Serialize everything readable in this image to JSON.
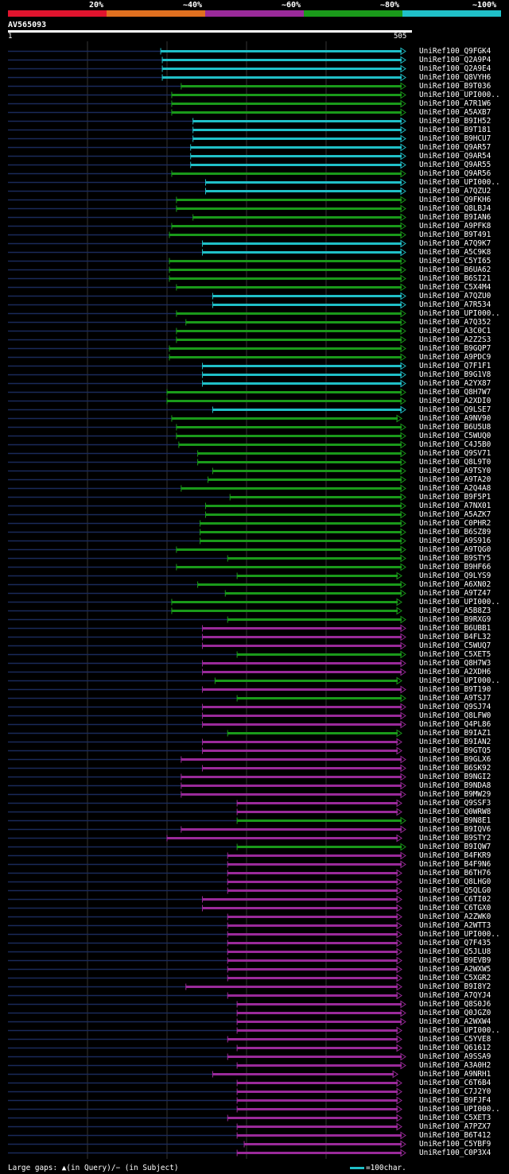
{
  "legend": {
    "labels": [
      "20%",
      "~40%",
      "~60%",
      "~80%",
      "~100%"
    ],
    "colors": [
      "#e0142e",
      "#e07020",
      "#9a2a9a",
      "#1a9a1a",
      "#20c0c8"
    ]
  },
  "query": {
    "name": "AV565093",
    "start_label": "1",
    "end_label": "505",
    "length": 505
  },
  "hits": [
    {
      "name": "UniRef100_Q9FGK4",
      "start": 194,
      "end": 505,
      "color": "cyan"
    },
    {
      "name": "UniRef100_Q2A9P4",
      "start": 196,
      "end": 505,
      "color": "cyan"
    },
    {
      "name": "UniRef100_Q2A9E4",
      "start": 196,
      "end": 505,
      "color": "cyan"
    },
    {
      "name": "UniRef100_Q8VYH6",
      "start": 196,
      "end": 505,
      "color": "cyan"
    },
    {
      "name": "UniRef100_B9T036",
      "start": 220,
      "end": 505,
      "color": "green"
    },
    {
      "name": "UniRef100_UPI000..",
      "start": 208,
      "end": 505,
      "color": "green"
    },
    {
      "name": "UniRef100_A7R1W6",
      "start": 208,
      "end": 505,
      "color": "green"
    },
    {
      "name": "UniRef100_A5AXB7",
      "start": 208,
      "end": 505,
      "color": "green"
    },
    {
      "name": "UniRef100_B9IH52",
      "start": 235,
      "end": 505,
      "color": "cyan"
    },
    {
      "name": "UniRef100_B9T181",
      "start": 235,
      "end": 505,
      "color": "cyan"
    },
    {
      "name": "UniRef100_B9HCU7",
      "start": 235,
      "end": 505,
      "color": "cyan"
    },
    {
      "name": "UniRef100_Q9AR57",
      "start": 232,
      "end": 505,
      "color": "cyan"
    },
    {
      "name": "UniRef100_Q9AR54",
      "start": 232,
      "end": 505,
      "color": "cyan"
    },
    {
      "name": "UniRef100_Q9AR55",
      "start": 232,
      "end": 505,
      "color": "cyan"
    },
    {
      "name": "UniRef100_Q9AR56",
      "start": 208,
      "end": 505,
      "color": "green"
    },
    {
      "name": "UniRef100_UPI000..",
      "start": 251,
      "end": 505,
      "color": "cyan"
    },
    {
      "name": "UniRef100_A7QZU2",
      "start": 251,
      "end": 505,
      "color": "cyan"
    },
    {
      "name": "UniRef100_Q9FKH6",
      "start": 214,
      "end": 505,
      "color": "green"
    },
    {
      "name": "UniRef100_Q8LBJ4",
      "start": 214,
      "end": 505,
      "color": "green"
    },
    {
      "name": "UniRef100_B9IAN6",
      "start": 235,
      "end": 505,
      "color": "green"
    },
    {
      "name": "UniRef100_A9PFK8",
      "start": 208,
      "end": 505,
      "color": "green"
    },
    {
      "name": "UniRef100_B9T491",
      "start": 205,
      "end": 505,
      "color": "green"
    },
    {
      "name": "UniRef100_A7Q9K7",
      "start": 247,
      "end": 505,
      "color": "cyan"
    },
    {
      "name": "UniRef100_A5C9K8",
      "start": 247,
      "end": 505,
      "color": "cyan"
    },
    {
      "name": "UniRef100_C5YI65",
      "start": 205,
      "end": 505,
      "color": "green"
    },
    {
      "name": "UniRef100_B6UA62",
      "start": 205,
      "end": 505,
      "color": "green"
    },
    {
      "name": "UniRef100_B6SI21",
      "start": 205,
      "end": 505,
      "color": "green"
    },
    {
      "name": "UniRef100_C5X4M4",
      "start": 214,
      "end": 505,
      "color": "green"
    },
    {
      "name": "UniRef100_A7QZU0",
      "start": 260,
      "end": 505,
      "color": "cyan"
    },
    {
      "name": "UniRef100_A7R534",
      "start": 260,
      "end": 505,
      "color": "cyan"
    },
    {
      "name": "UniRef100_UPI000..",
      "start": 214,
      "end": 505,
      "color": "green"
    },
    {
      "name": "UniRef100_A7Q352",
      "start": 226,
      "end": 505,
      "color": "green"
    },
    {
      "name": "UniRef100_A3C0C1",
      "start": 214,
      "end": 505,
      "color": "green"
    },
    {
      "name": "UniRef100_A2Z2S3",
      "start": 214,
      "end": 505,
      "color": "green"
    },
    {
      "name": "UniRef100_B9GQP7",
      "start": 205,
      "end": 505,
      "color": "green"
    },
    {
      "name": "UniRef100_A9PDC9",
      "start": 205,
      "end": 505,
      "color": "green"
    },
    {
      "name": "UniRef100_Q7F1F1",
      "start": 247,
      "end": 505,
      "color": "cyan"
    },
    {
      "name": "UniRef100_B9G1V8",
      "start": 247,
      "end": 505,
      "color": "cyan"
    },
    {
      "name": "UniRef100_A2YX87",
      "start": 247,
      "end": 505,
      "color": "cyan"
    },
    {
      "name": "UniRef100_Q8H7W7",
      "start": 202,
      "end": 505,
      "color": "green"
    },
    {
      "name": "UniRef100_A2XDI0",
      "start": 202,
      "end": 505,
      "color": "green"
    },
    {
      "name": "UniRef100_Q9LSE7",
      "start": 260,
      "end": 505,
      "color": "cyan"
    },
    {
      "name": "UniRef100_A9NV90",
      "start": 208,
      "end": 500,
      "color": "green"
    },
    {
      "name": "UniRef100_B6U5U8",
      "start": 214,
      "end": 505,
      "color": "green"
    },
    {
      "name": "UniRef100_C5WUQ0",
      "start": 214,
      "end": 505,
      "color": "green"
    },
    {
      "name": "UniRef100_C4J5B0",
      "start": 217,
      "end": 505,
      "color": "green"
    },
    {
      "name": "UniRef100_Q9SV71",
      "start": 241,
      "end": 505,
      "color": "green"
    },
    {
      "name": "UniRef100_Q8L9T0",
      "start": 241,
      "end": 505,
      "color": "green"
    },
    {
      "name": "UniRef100_A9TSY0",
      "start": 260,
      "end": 505,
      "color": "green"
    },
    {
      "name": "UniRef100_A9TA20",
      "start": 254,
      "end": 505,
      "color": "green"
    },
    {
      "name": "UniRef100_A2Q4A8",
      "start": 220,
      "end": 505,
      "color": "green"
    },
    {
      "name": "UniRef100_B9F5P1",
      "start": 282,
      "end": 505,
      "color": "green"
    },
    {
      "name": "UniRef100_A7NX01",
      "start": 251,
      "end": 505,
      "color": "green"
    },
    {
      "name": "UniRef100_A5AZK7",
      "start": 251,
      "end": 505,
      "color": "green"
    },
    {
      "name": "UniRef100_C0PHR2",
      "start": 244,
      "end": 505,
      "color": "green"
    },
    {
      "name": "UniRef100_B6SZ89",
      "start": 244,
      "end": 505,
      "color": "green"
    },
    {
      "name": "UniRef100_A9S916",
      "start": 244,
      "end": 505,
      "color": "green"
    },
    {
      "name": "UniRef100_A9TQG0",
      "start": 214,
      "end": 505,
      "color": "green"
    },
    {
      "name": "UniRef100_B9STY5",
      "start": 279,
      "end": 505,
      "color": "green"
    },
    {
      "name": "UniRef100_B9HF66",
      "start": 214,
      "end": 505,
      "color": "green"
    },
    {
      "name": "UniRef100_Q9LYS9",
      "start": 291,
      "end": 500,
      "color": "green"
    },
    {
      "name": "UniRef100_A6XN02",
      "start": 241,
      "end": 505,
      "color": "green"
    },
    {
      "name": "UniRef100_A9TZ47",
      "start": 276,
      "end": 505,
      "color": "green"
    },
    {
      "name": "UniRef100_UPI000..",
      "start": 208,
      "end": 500,
      "color": "green"
    },
    {
      "name": "UniRef100_A5B8Z3",
      "start": 208,
      "end": 500,
      "color": "green"
    },
    {
      "name": "UniRef100_B9RXG9",
      "start": 279,
      "end": 505,
      "color": "green"
    },
    {
      "name": "UniRef100_B6UBB1",
      "start": 247,
      "end": 505,
      "color": "purple"
    },
    {
      "name": "UniRef100_B4FL32",
      "start": 247,
      "end": 505,
      "color": "purple"
    },
    {
      "name": "UniRef100_C5WUQ7",
      "start": 247,
      "end": 505,
      "color": "purple"
    },
    {
      "name": "UniRef100_C5XET5",
      "start": 291,
      "end": 505,
      "color": "green"
    },
    {
      "name": "UniRef100_Q8H7W3",
      "start": 247,
      "end": 505,
      "color": "purple"
    },
    {
      "name": "UniRef100_A2XDH6",
      "start": 247,
      "end": 505,
      "color": "purple"
    },
    {
      "name": "UniRef100_UPI000..",
      "start": 263,
      "end": 500,
      "color": "green"
    },
    {
      "name": "UniRef100_B9T190",
      "start": 247,
      "end": 505,
      "color": "purple"
    },
    {
      "name": "UniRef100_A9TSJ7",
      "start": 291,
      "end": 505,
      "color": "green"
    },
    {
      "name": "UniRef100_Q9SJ74",
      "start": 247,
      "end": 505,
      "color": "purple"
    },
    {
      "name": "UniRef100_Q8LFW0",
      "start": 247,
      "end": 505,
      "color": "purple"
    },
    {
      "name": "UniRef100_Q4PL86",
      "start": 247,
      "end": 505,
      "color": "purple"
    },
    {
      "name": "UniRef100_B9IAZ1",
      "start": 279,
      "end": 500,
      "color": "green"
    },
    {
      "name": "UniRef100_B9IAN2",
      "start": 247,
      "end": 500,
      "color": "purple"
    },
    {
      "name": "UniRef100_B9GTQ5",
      "start": 247,
      "end": 500,
      "color": "purple"
    },
    {
      "name": "UniRef100_B9GLX6",
      "start": 220,
      "end": 505,
      "color": "purple"
    },
    {
      "name": "UniRef100_B6SK92",
      "start": 247,
      "end": 505,
      "color": "purple"
    },
    {
      "name": "UniRef100_B9NGI2",
      "start": 220,
      "end": 505,
      "color": "purple"
    },
    {
      "name": "UniRef100_B9NDA8",
      "start": 220,
      "end": 505,
      "color": "purple"
    },
    {
      "name": "UniRef100_B9MW29",
      "start": 220,
      "end": 505,
      "color": "purple"
    },
    {
      "name": "UniRef100_Q9SSF3",
      "start": 291,
      "end": 500,
      "color": "purple"
    },
    {
      "name": "UniRef100_Q0WRW8",
      "start": 291,
      "end": 500,
      "color": "purple"
    },
    {
      "name": "UniRef100_B9N8E1",
      "start": 291,
      "end": 505,
      "color": "green"
    },
    {
      "name": "UniRef100_B9IQV6",
      "start": 220,
      "end": 505,
      "color": "purple"
    },
    {
      "name": "UniRef100_B9STY2",
      "start": 202,
      "end": 500,
      "color": "purple"
    },
    {
      "name": "UniRef100_B9IQW7",
      "start": 291,
      "end": 505,
      "color": "green"
    },
    {
      "name": "UniRef100_B4FKR9",
      "start": 279,
      "end": 505,
      "color": "purple"
    },
    {
      "name": "UniRef100_B4F9N6",
      "start": 279,
      "end": 505,
      "color": "purple"
    },
    {
      "name": "UniRef100_B6TH76",
      "start": 279,
      "end": 500,
      "color": "purple"
    },
    {
      "name": "UniRef100_Q8LHG0",
      "start": 279,
      "end": 500,
      "color": "purple"
    },
    {
      "name": "UniRef100_Q5QLG0",
      "start": 279,
      "end": 500,
      "color": "purple"
    },
    {
      "name": "UniRef100_C6TI02",
      "start": 247,
      "end": 500,
      "color": "purple"
    },
    {
      "name": "UniRef100_C6TGX0",
      "start": 247,
      "end": 500,
      "color": "purple"
    },
    {
      "name": "UniRef100_A2ZWK0",
      "start": 279,
      "end": 500,
      "color": "purple"
    },
    {
      "name": "UniRef100_A2WTT3",
      "start": 279,
      "end": 500,
      "color": "purple"
    },
    {
      "name": "UniRef100_UPI000..",
      "start": 279,
      "end": 500,
      "color": "purple"
    },
    {
      "name": "UniRef100_Q7F435",
      "start": 279,
      "end": 500,
      "color": "purple"
    },
    {
      "name": "UniRef100_Q5JLU8",
      "start": 279,
      "end": 500,
      "color": "purple"
    },
    {
      "name": "UniRef100_B9EVB9",
      "start": 279,
      "end": 500,
      "color": "purple"
    },
    {
      "name": "UniRef100_A2WXW5",
      "start": 279,
      "end": 500,
      "color": "purple"
    },
    {
      "name": "UniRef100_C5XGR2",
      "start": 279,
      "end": 500,
      "color": "purple"
    },
    {
      "name": "UniRef100_B9I8Y2",
      "start": 226,
      "end": 500,
      "color": "purple"
    },
    {
      "name": "UniRef100_A7QYJ4",
      "start": 279,
      "end": 500,
      "color": "purple"
    },
    {
      "name": "UniRef100_Q8S0J6",
      "start": 291,
      "end": 505,
      "color": "purple"
    },
    {
      "name": "UniRef100_Q0JGZ0",
      "start": 291,
      "end": 505,
      "color": "purple"
    },
    {
      "name": "UniRef100_A2WXW4",
      "start": 291,
      "end": 505,
      "color": "purple"
    },
    {
      "name": "UniRef100_UPI000..",
      "start": 291,
      "end": 500,
      "color": "purple"
    },
    {
      "name": "UniRef100_C5YVE8",
      "start": 279,
      "end": 500,
      "color": "purple"
    },
    {
      "name": "UniRef100_Q61612",
      "start": 291,
      "end": 500,
      "color": "purple"
    },
    {
      "name": "UniRef100_A9SSA9",
      "start": 279,
      "end": 505,
      "color": "purple"
    },
    {
      "name": "UniRef100_A3A0H2",
      "start": 291,
      "end": 505,
      "color": "purple"
    },
    {
      "name": "UniRef100_A9NRH1",
      "start": 260,
      "end": 495,
      "color": "purple"
    },
    {
      "name": "UniRef100_C6T6B4",
      "start": 291,
      "end": 500,
      "color": "purple"
    },
    {
      "name": "UniRef100_C7J2Y0",
      "start": 291,
      "end": 500,
      "color": "purple"
    },
    {
      "name": "UniRef100_B9FJF4",
      "start": 291,
      "end": 500,
      "color": "purple"
    },
    {
      "name": "UniRef100_UPI000..",
      "start": 291,
      "end": 500,
      "color": "purple"
    },
    {
      "name": "UniRef100_C5XET3",
      "start": 279,
      "end": 500,
      "color": "purple"
    },
    {
      "name": "UniRef100_A7PZX7",
      "start": 291,
      "end": 500,
      "color": "purple"
    },
    {
      "name": "UniRef100_B6T412",
      "start": 291,
      "end": 505,
      "color": "purple"
    },
    {
      "name": "UniRef100_C5YBF9",
      "start": 300,
      "end": 505,
      "color": "purple"
    },
    {
      "name": "UniRef100_C0P3X4",
      "start": 291,
      "end": 505,
      "color": "purple"
    }
  ],
  "footer": {
    "left": "Large gaps: ▲(in Query)/− (in Subject)",
    "right": "=100char."
  }
}
